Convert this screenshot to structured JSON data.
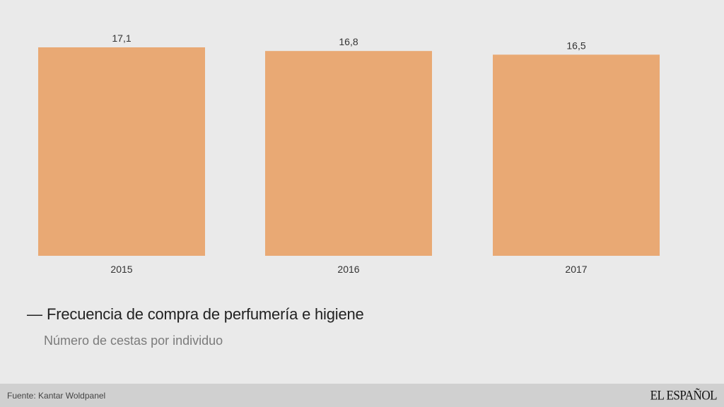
{
  "chart_data": {
    "type": "bar",
    "categories": [
      "2015",
      "2016",
      "2017"
    ],
    "values": [
      17.1,
      16.8,
      16.5
    ],
    "value_labels": [
      "17,1",
      "16,8",
      "16,5"
    ],
    "title": "Frecuencia de compra de perfumería e higiene",
    "subtitle": "Número de cestas por individuo",
    "xlabel": "",
    "ylabel": "",
    "ylim": [
      0,
      17.1
    ],
    "grid": false,
    "legend": "none",
    "bar_color": "#e9a974"
  },
  "header": {
    "title_dash": "—"
  },
  "footer": {
    "source": "Fuente: Kantar Woldpanel",
    "brand": "EL ESPAÑOL"
  }
}
